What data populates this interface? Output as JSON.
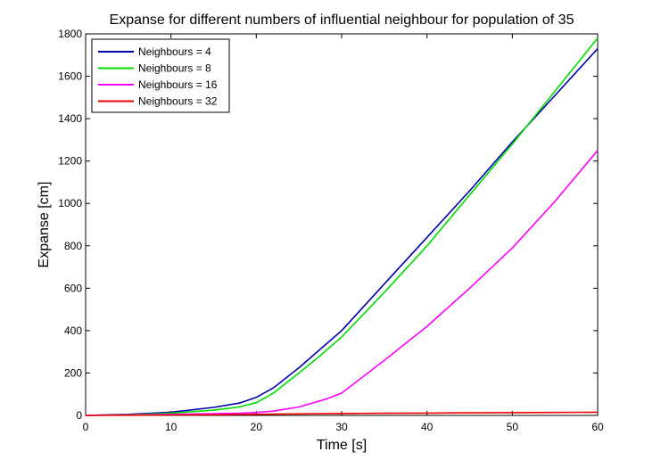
{
  "chart_data": {
    "type": "line",
    "title": "Expanse for different numbers of influential neighbour for population of 35",
    "xlabel": "Time [s]",
    "ylabel": "Expanse [cm]",
    "xlim": [
      0,
      60
    ],
    "ylim": [
      0,
      1800
    ],
    "xticks": [
      "0",
      "10",
      "20",
      "30",
      "40",
      "50",
      "60"
    ],
    "yticks": [
      "0",
      "200",
      "400",
      "600",
      "800",
      "1000",
      "1200",
      "1400",
      "1600",
      "1800"
    ],
    "grid": false,
    "legend_position": "top-left",
    "x": [
      0,
      5,
      10,
      15,
      18,
      20,
      22,
      25,
      28,
      30,
      35,
      40,
      45,
      50,
      55,
      60
    ],
    "series": [
      {
        "name": "Neighbours = 4",
        "color": "#0000aa",
        "values": [
          0,
          5,
          15,
          38,
          58,
          85,
          130,
          225,
          330,
          400,
          620,
          840,
          1060,
          1290,
          1510,
          1730
        ]
      },
      {
        "name": "Neighbours = 8",
        "color": "#00dd00",
        "values": [
          0,
          3,
          10,
          25,
          40,
          60,
          105,
          200,
          300,
          370,
          580,
          800,
          1040,
          1280,
          1530,
          1780
        ]
      },
      {
        "name": "Neighbours = 16",
        "color": "#ff00ff",
        "values": [
          0,
          2,
          5,
          8,
          10,
          14,
          20,
          40,
          75,
          105,
          260,
          420,
          600,
          790,
          1010,
          1250
        ]
      },
      {
        "name": "Neighbours = 32",
        "color": "#ee0000",
        "values": [
          0,
          1,
          2,
          3,
          4,
          5,
          6,
          7,
          8,
          9,
          10,
          11,
          12,
          13,
          14,
          15
        ]
      }
    ]
  }
}
